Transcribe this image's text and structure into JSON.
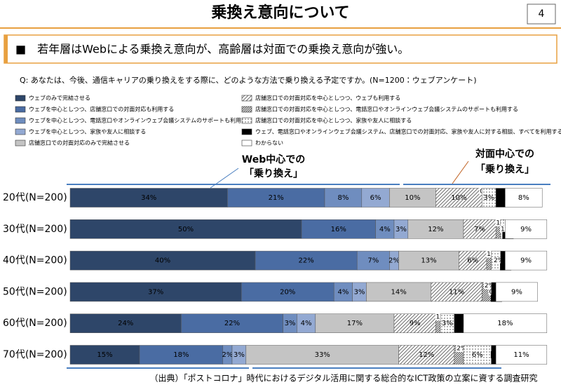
{
  "header": {
    "title": "乗換え意向について",
    "page": "4"
  },
  "headline": "■　若年層はWebによる乗換え意向が、高齢層は対面での乗換え意向が強い。",
  "question": "Q: あなたは、今後、通信キャリアの乗り換えをする際に、どのような方法で乗り換える予定ですか。(N=1200：ウェブアンケート)",
  "annotations": [
    {
      "line1": "Web中心での",
      "line2": "「乗り換え」"
    },
    {
      "line1": "対面中心での",
      "line2": "「乗り換え」"
    }
  ],
  "source": "（出典）「ポストコロナ」時代におけるデジタル活用に関する総合的なICT政策の立案に資する調査研究",
  "chart_data": {
    "type": "stacked-bar",
    "orientation": "horizontal",
    "categories": [
      "20代(N=200)",
      "30代(N=200)",
      "40代(N=200)",
      "50代(N=200)",
      "60代(N=200)",
      "70代(N=200)"
    ],
    "series": [
      {
        "name": "ウェブのみで完結させる",
        "color": "#2e4669",
        "values": [
          34,
          50,
          40,
          37,
          24,
          15
        ],
        "value_labels": [
          "34%",
          "50%",
          "40%",
          "37%",
          "24%",
          "15%"
        ]
      },
      {
        "name": "ウェブを中心としつつ、店舗窓口での対面対応も利用する",
        "color": "#4a6ca3",
        "values": [
          21,
          16,
          22,
          20,
          22,
          18
        ],
        "value_labels": [
          "21%",
          "16%",
          "22%",
          "20%",
          "22%",
          "18%"
        ]
      },
      {
        "name": "ウェブを中心としつつ、電話窓口やオンラインウェブ会議システムのサポートも利用する",
        "color": "#6f8dbf",
        "values": [
          8,
          4,
          7,
          4,
          3,
          2
        ],
        "value_labels": [
          "8%",
          "4%",
          "7%",
          "4%",
          "3%",
          "2%"
        ]
      },
      {
        "name": "ウェブを中心としつつ、家族や友人に相談する",
        "color": "#93a9d2",
        "values": [
          6,
          3,
          2,
          3,
          4,
          3
        ],
        "value_labels": [
          "6%",
          "3%",
          "2%",
          "3%",
          "4%",
          "3%"
        ]
      },
      {
        "name": "店舗窓口での対面対応のみで完結させる",
        "color": "#c4c4c4",
        "values": [
          10,
          12,
          13,
          14,
          17,
          33
        ],
        "value_labels": [
          "10%",
          "12%",
          "13%",
          "14%",
          "17%",
          "33%"
        ]
      },
      {
        "name": "店舗窓口での対面対応を中心としつつ、ウェブも利用する",
        "color": "#555555",
        "pattern": "diagonal",
        "values": [
          10,
          7,
          6,
          11,
          9,
          12
        ],
        "value_labels": [
          "10%",
          "7%",
          "6%",
          "11%",
          "9%",
          "12%"
        ]
      },
      {
        "name": "店舗窓口での対面対応を中心としつつ、電話窓口やオンラインウェブ会議システムのサポートも利用する",
        "color": "#222222",
        "pattern": "dense",
        "values": [
          0,
          1,
          1,
          2,
          1,
          2
        ],
        "value_labels": [
          "0%",
          "1%",
          "1%",
          "2%",
          "1%",
          "2%"
        ]
      },
      {
        "name": "店舗窓口での対面対応を中心としつつ、家族や友人に相談する",
        "color": "#444444",
        "pattern": "dots",
        "values": [
          3,
          1,
          2,
          0,
          3,
          6
        ],
        "value_labels": [
          "3%",
          "1%",
          "2%",
          "0%",
          "3%",
          "6%"
        ]
      },
      {
        "name": "ウェブ、電話窓口やオンラインウェブ会議システム、店舗窓口での対面対応、家族や友人に対する相談、すべてを利用する",
        "color": "#000000",
        "values": [
          2,
          0,
          1,
          1,
          2,
          1
        ],
        "value_labels": [
          "2%",
          "0%",
          "1%",
          "1%",
          "2%",
          "1%"
        ]
      },
      {
        "name": "わからない",
        "color": "#ffffff",
        "values": [
          8,
          9,
          9,
          9,
          18,
          11
        ],
        "value_labels": [
          "8%",
          "9%",
          "9%",
          "9%",
          "18%",
          "11%"
        ]
      }
    ]
  }
}
